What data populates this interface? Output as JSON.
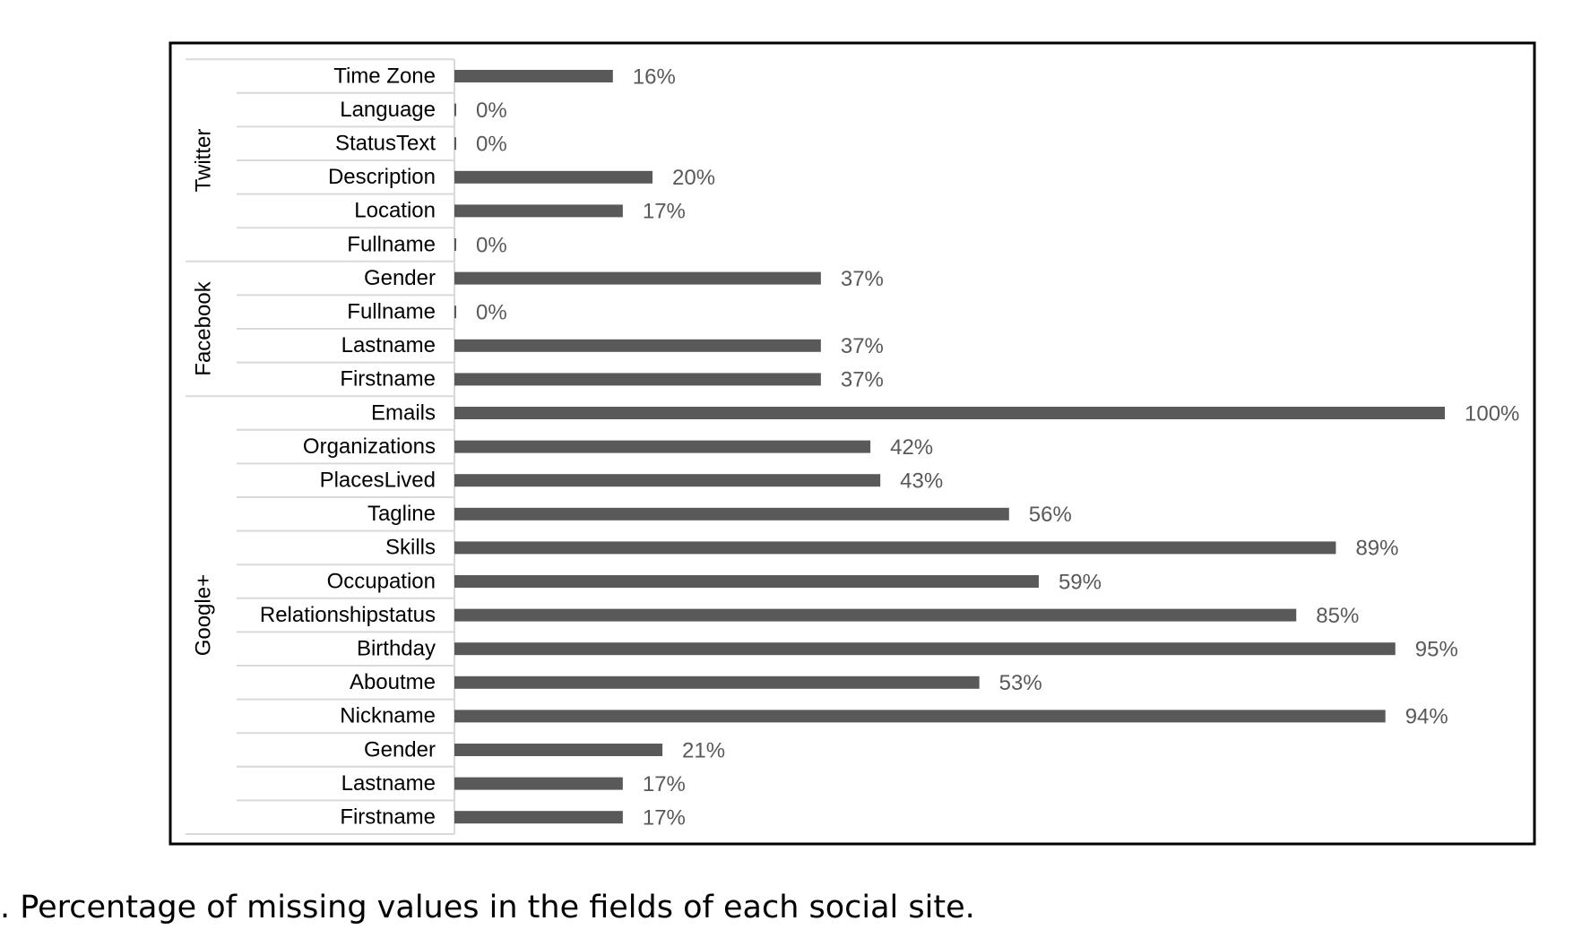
{
  "caption": ".  Percentage of missing values in the fields of each social site.",
  "colors": {
    "bar": "#595959",
    "value_text": "#595959",
    "frame": "#000000",
    "rule": "#d9d9d9"
  },
  "chart_data": {
    "type": "bar",
    "orientation": "horizontal",
    "title": "",
    "xlabel": "",
    "ylabel": "",
    "xlim": [
      0,
      100
    ],
    "value_suffix": "%",
    "groups": [
      {
        "name": "Twitter",
        "categories": [
          "Time Zone",
          "Language",
          "StatusText",
          "Description",
          "Location",
          "Fullname"
        ],
        "values": [
          16,
          0,
          0,
          20,
          17,
          0
        ]
      },
      {
        "name": "Facebook",
        "categories": [
          "Gender",
          "Fullname",
          "Lastname",
          "Firstname"
        ],
        "values": [
          37,
          0,
          37,
          37
        ]
      },
      {
        "name": "Google+",
        "categories": [
          "Emails",
          "Organizations",
          "PlacesLived",
          "Tagline",
          "Skills",
          "Occupation",
          "Relationshipstatus",
          "Birthday",
          "Aboutme",
          "Nickname",
          "Gender",
          "Lastname",
          "Firstname"
        ],
        "values": [
          100,
          42,
          43,
          56,
          89,
          59,
          85,
          95,
          53,
          94,
          21,
          17,
          17
        ]
      }
    ]
  }
}
